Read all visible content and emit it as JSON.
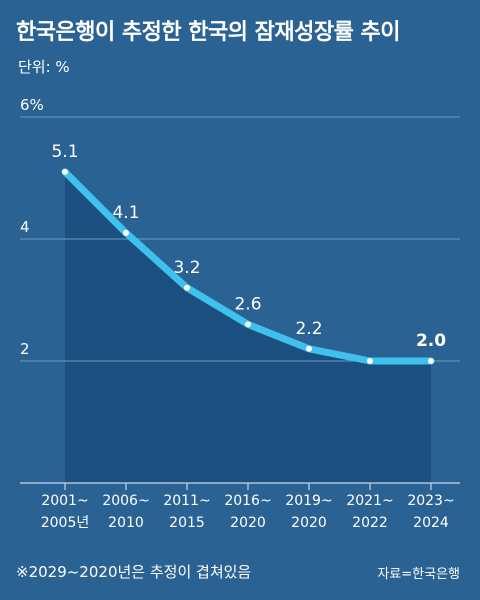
{
  "title": "한국은행이 추정한 한국의 잠재성장률 추이",
  "unit": "단위: %",
  "footnote": "※2029~2020년은 추정이 겹쳐있음",
  "source": "자료=한국은행",
  "colors": {
    "background": "#2a6293",
    "area": "#1b4f7f",
    "line": "#3ec1ec",
    "grid": "#6f9ac0"
  },
  "chart_data": {
    "type": "area",
    "title": "한국은행이 추정한 한국의 잠재성장률 추이",
    "ylabel": "단위: %",
    "ylim": [
      0,
      6
    ],
    "yticks": [
      {
        "value": 2,
        "label": "2"
      },
      {
        "value": 4,
        "label": "4"
      },
      {
        "value": 6,
        "label": "6%"
      }
    ],
    "grid": true,
    "categories": [
      [
        "2001~",
        "2005년"
      ],
      [
        "2006~",
        "2010"
      ],
      [
        "2011~",
        "2015"
      ],
      [
        "2016~",
        "2020"
      ],
      [
        "2019~",
        "2020"
      ],
      [
        "2021~",
        "2022"
      ],
      [
        "2023~",
        "2024"
      ]
    ],
    "values": [
      5.1,
      4.1,
      3.2,
      2.6,
      2.2,
      2.0,
      2.0
    ],
    "data_labels": [
      "5.1",
      "4.1",
      "3.2",
      "2.6",
      "2.2",
      null,
      "2.0"
    ],
    "highlight_last_label": true
  }
}
